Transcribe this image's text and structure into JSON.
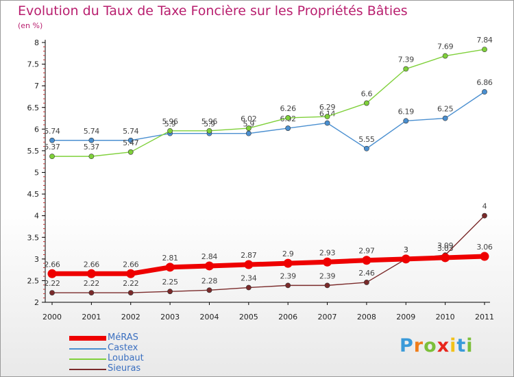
{
  "header": {
    "title": "Evolution du Taux de Taxe Foncière sur les Propriétés Bâties",
    "subtitle": "(en %)"
  },
  "brand": {
    "letters": [
      "P",
      "r",
      "o",
      "x",
      "i",
      "t",
      "i"
    ],
    "colors": [
      "#3a9ad9",
      "#f07d1a",
      "#7cbf3a",
      "#e8261c",
      "#f2c21a",
      "#3a9ad9",
      "#7cbf3a"
    ]
  },
  "chart_data": {
    "type": "line",
    "x": [
      "2000",
      "2001",
      "2002",
      "2003",
      "2004",
      "2005",
      "2006",
      "2007",
      "2008",
      "2009",
      "2010",
      "2011"
    ],
    "ylim": [
      2,
      8
    ],
    "yticks": [
      "2",
      "2.5",
      "3",
      "3.5",
      "4",
      "4.5",
      "5",
      "5.5",
      "6",
      "6.5",
      "7",
      "7.5",
      "8"
    ],
    "grid": false,
    "legend_position": "bottom-left",
    "series": [
      {
        "name": "Sieuras",
        "color": "#7a2a2a",
        "values": [
          2.22,
          2.22,
          2.22,
          2.25,
          2.28,
          2.34,
          2.39,
          2.39,
          2.46,
          3,
          3.09,
          4
        ],
        "labels": [
          "2.22",
          "2.22",
          "2.22",
          "2.25",
          "2.28",
          "2.34",
          "2.39",
          "2.39",
          "2.46",
          "3",
          "3.09",
          "4"
        ]
      },
      {
        "name": "Castex",
        "color": "#4a8fd0",
        "values": [
          5.74,
          5.74,
          5.74,
          5.9,
          5.9,
          5.9,
          6.02,
          6.14,
          5.55,
          6.19,
          6.25,
          6.86
        ],
        "labels": [
          "5.74",
          "5.74",
          "5.74",
          "5.9",
          "5.9",
          "5.9",
          "6.02",
          "6.14",
          "5.55",
          "6.19",
          "6.25",
          "6.86"
        ]
      },
      {
        "name": "Loubaut",
        "color": "#7fd03a",
        "values": [
          5.37,
          5.37,
          5.47,
          5.96,
          5.96,
          6.02,
          6.26,
          6.29,
          6.6,
          7.39,
          7.69,
          7.84
        ],
        "labels": [
          "5.37",
          "5.37",
          "5.47",
          "5.96",
          "5.96",
          "6.02",
          "6.26",
          "6.29",
          "6.6",
          "7.39",
          "7.69",
          "7.84"
        ]
      },
      {
        "name": "MéRAS",
        "color": "#ee0000",
        "values": [
          2.66,
          2.66,
          2.66,
          2.81,
          2.84,
          2.87,
          2.9,
          2.93,
          2.97,
          3,
          3.03,
          3.06
        ],
        "labels": [
          "2.66",
          "2.66",
          "2.66",
          "2.81",
          "2.84",
          "2.87",
          "2.9",
          "2.93",
          "2.97",
          "3",
          "3.03",
          "3.06"
        ]
      }
    ],
    "legend_order": [
      "MéRAS",
      "Castex",
      "Loubaut",
      "Sieuras"
    ]
  }
}
